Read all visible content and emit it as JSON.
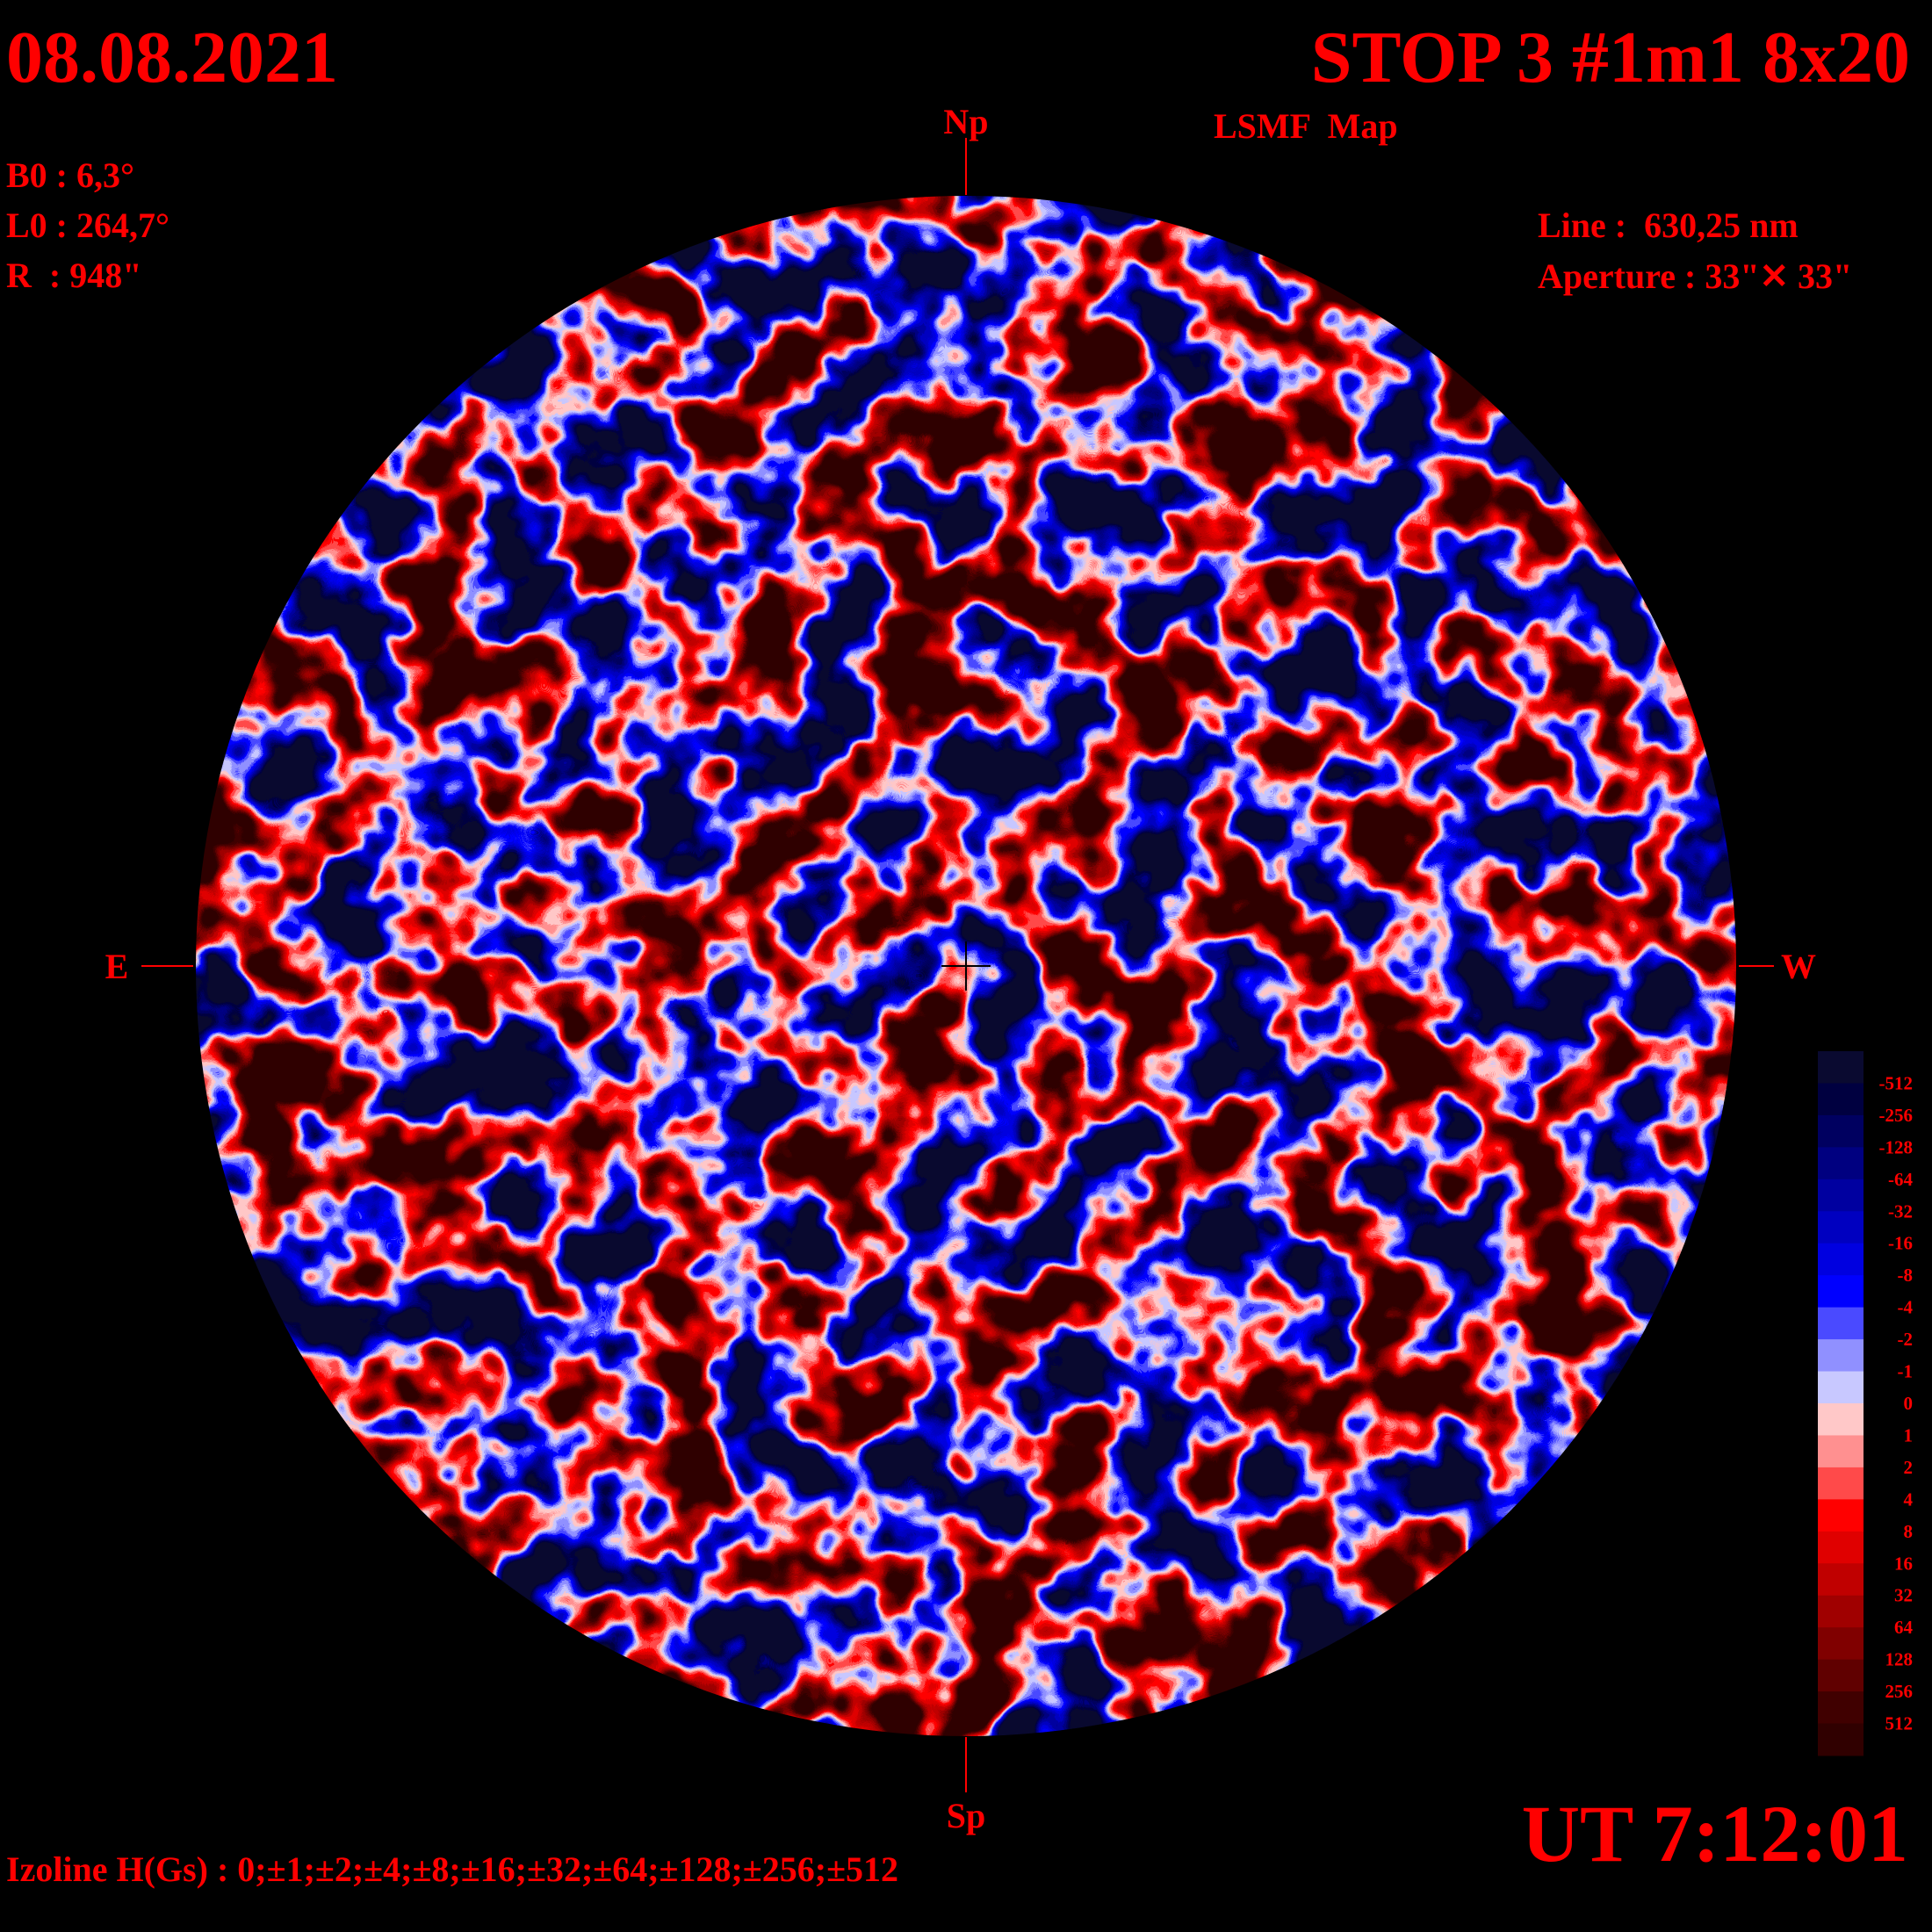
{
  "header": {
    "date": "08.08.2021",
    "title": "STOP 3 #1m1 8x20",
    "subtitle": "LSMF  Map"
  },
  "params": {
    "b0": "B0 : 6,3°",
    "l0": "L0 : 264,7°",
    "r": "R  : 948\""
  },
  "instrument": {
    "line": "Line :  630,25 nm",
    "aperture": "Aperture : 33\"✕ 33\""
  },
  "directions": {
    "north": "Np",
    "south": "Sp",
    "east": "E",
    "west": "W"
  },
  "colorbar": {
    "labels": [
      "-512",
      "-256",
      "-128",
      "-64",
      "-32",
      "-16",
      "-8",
      "-4",
      "-2",
      "-1",
      "0",
      "1",
      "2",
      "4",
      "8",
      "16",
      "32",
      "64",
      "128",
      "256",
      "512"
    ],
    "colors": [
      "#0a0a30",
      "#000040",
      "#000060",
      "#000080",
      "#0000a0",
      "#0000c0",
      "#0000e0",
      "#0000ff",
      "#4a4aff",
      "#9090ff",
      "#c8c8ff",
      "#ffc8c8",
      "#ff9090",
      "#ff4a4a",
      "#ff0000",
      "#e00000",
      "#c00000",
      "#a00000",
      "#800000",
      "#600000",
      "#400000",
      "#300000"
    ]
  },
  "time": "UT 7:12:01",
  "footer": "Izoline H(Gs) : 0;±1;±2;±4;±8;±16;±32;±64;±128;±256;±512"
}
